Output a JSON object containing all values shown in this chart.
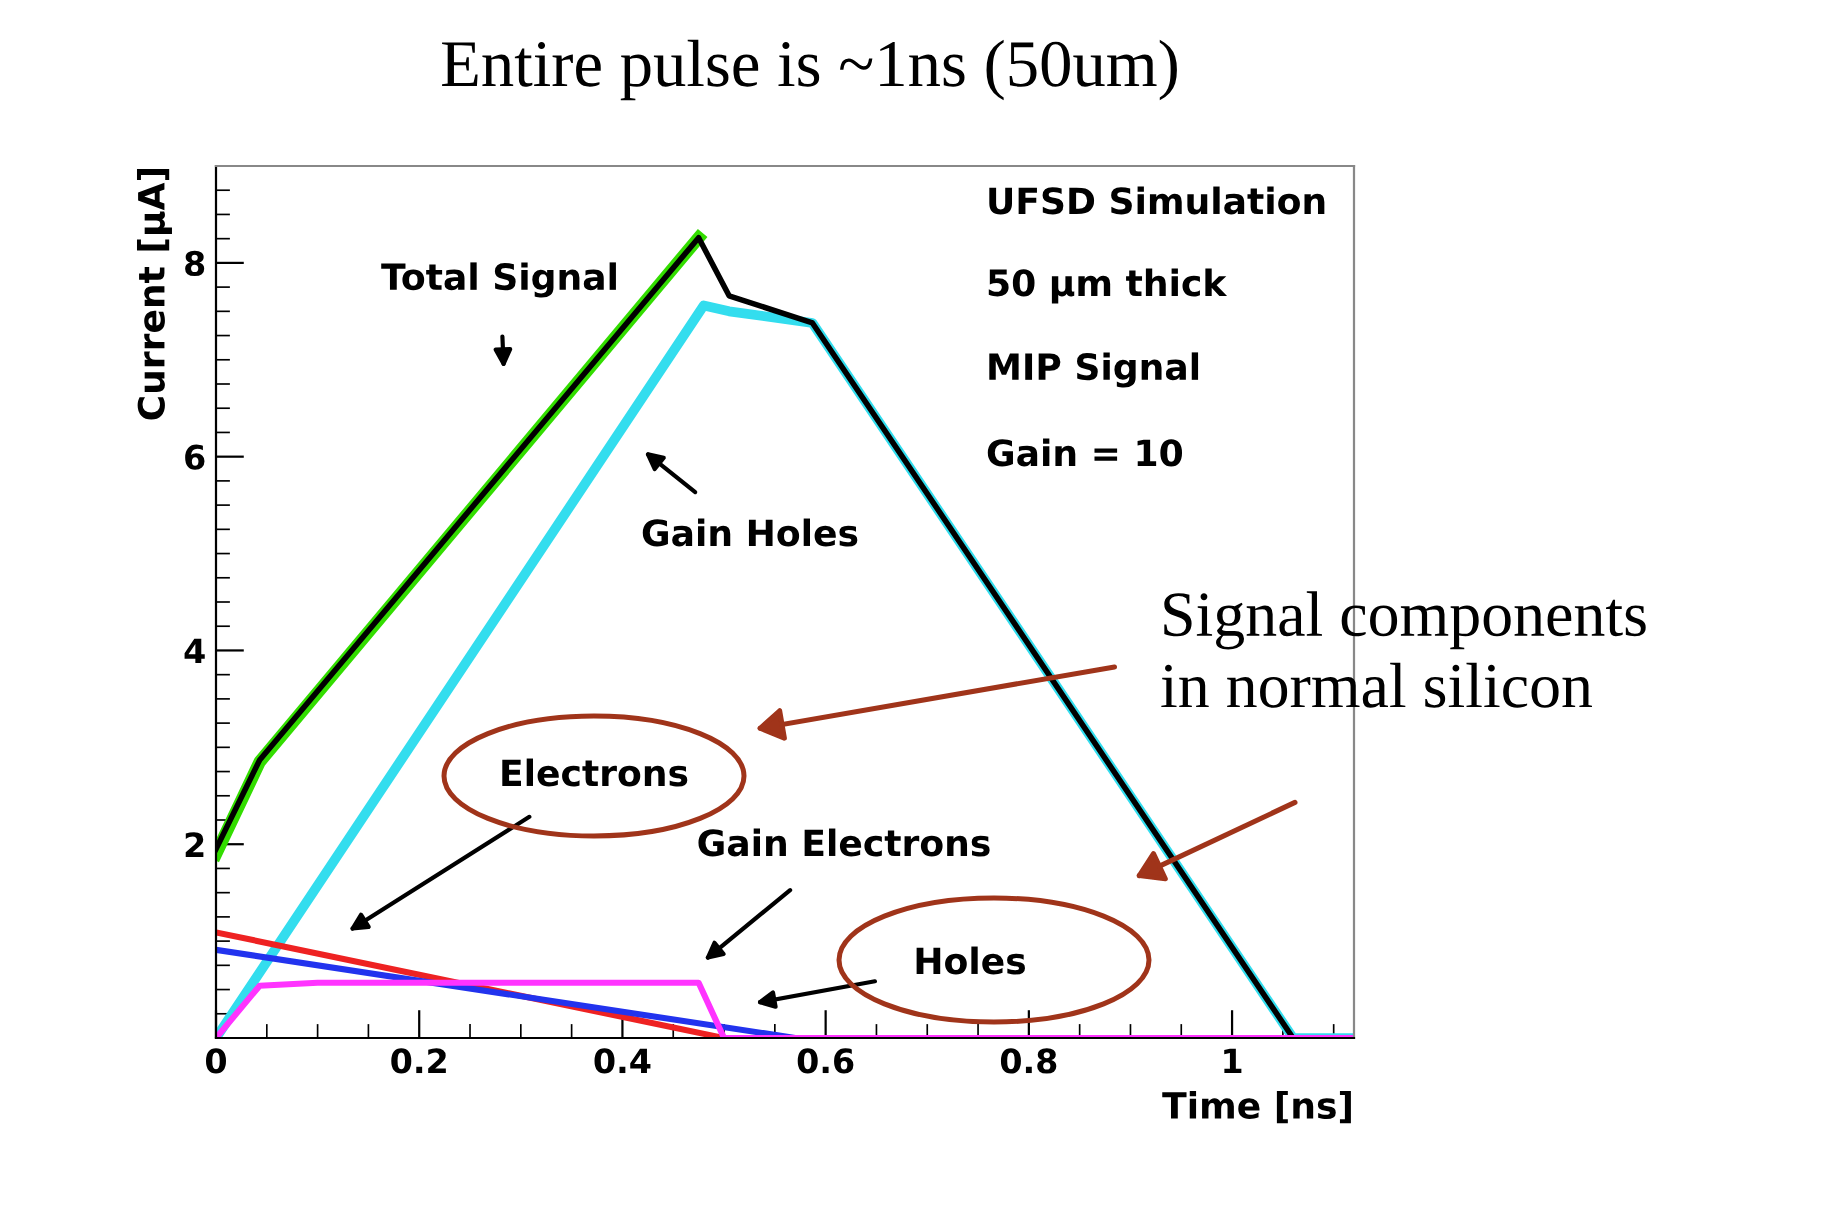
{
  "chart_data": {
    "type": "line",
    "title": "Entire pulse is ~1ns (50um)",
    "xlabel": "Time [ns]",
    "ylabel": "Current [μA]",
    "xlim": [
      0,
      1.12
    ],
    "ylim": [
      0,
      9
    ],
    "xticks": [
      0,
      0.2,
      0.4,
      0.6,
      0.8,
      1
    ],
    "yticks": [
      2,
      4,
      6,
      8
    ],
    "grid": false,
    "legend": false,
    "marker": "none",
    "line_style": "solid",
    "series": [
      {
        "color": "#33dd00",
        "x": [
          0,
          0.043,
          0.475
        ],
        "values": [
          1.9,
          2.85,
          8.26
        ]
      },
      {
        "color": "#33ddee",
        "x": [
          0,
          0.48,
          0.505,
          0.587,
          1.06,
          1.12
        ],
        "values": [
          0,
          7.56,
          7.5,
          7.38,
          0,
          0
        ]
      },
      {
        "color": "#000000",
        "x": [
          0,
          0.043,
          0.475,
          0.505,
          0.587,
          1.06,
          1.12
        ],
        "values": [
          1.95,
          2.87,
          8.26,
          7.66,
          7.38,
          0,
          0
        ]
      },
      {
        "color": "#ee2222",
        "x": [
          0,
          0.5
        ],
        "values": [
          1.09,
          0
        ]
      },
      {
        "color": "#2233ee",
        "x": [
          0,
          0.57,
          1.12
        ],
        "values": [
          0.91,
          0,
          0
        ]
      },
      {
        "color": "#ff33ff",
        "x": [
          0,
          0.043,
          0.1,
          0.475,
          0.5,
          1.12
        ],
        "values": [
          0,
          0.54,
          0.57,
          0.57,
          0,
          0
        ]
      }
    ],
    "annotations": [
      "Total Signal",
      "Gain Holes",
      "Electrons",
      "Gain Electrons",
      "Holes",
      "UFSD Simulation",
      "50 μm thick",
      "MIP Signal",
      "Gain = 10",
      "Signal components\nin normal silicon"
    ]
  }
}
